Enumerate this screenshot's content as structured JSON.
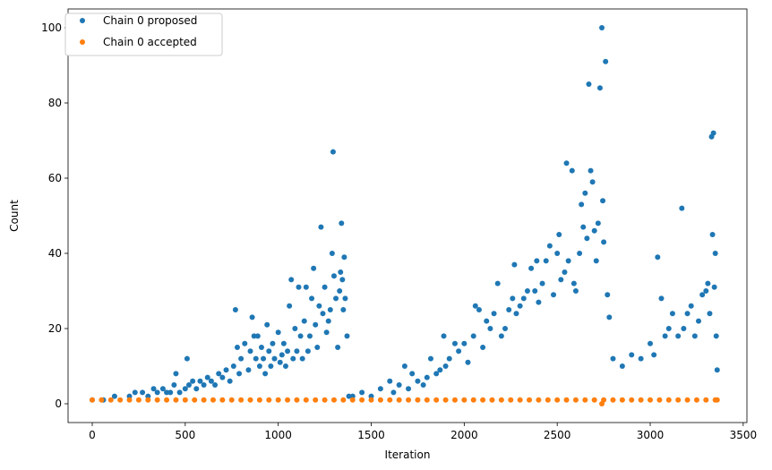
{
  "chart_data": {
    "type": "scatter",
    "title": "",
    "xlabel": "Iteration",
    "ylabel": "Count",
    "xlim": [
      -130,
      3520
    ],
    "ylim": [
      -5,
      105
    ],
    "xticks": [
      0,
      500,
      1000,
      1500,
      2000,
      2500,
      3000,
      3500
    ],
    "yticks": [
      0,
      20,
      40,
      60,
      80,
      100
    ],
    "grid": false,
    "legend": "top-left",
    "series": [
      {
        "name": "Chain 0 proposed",
        "color": "#1f77b4",
        "points": [
          [
            0,
            1
          ],
          [
            60,
            1
          ],
          [
            120,
            2
          ],
          [
            200,
            2
          ],
          [
            230,
            3
          ],
          [
            270,
            3
          ],
          [
            300,
            2
          ],
          [
            330,
            4
          ],
          [
            350,
            3
          ],
          [
            380,
            4
          ],
          [
            400,
            3
          ],
          [
            420,
            3
          ],
          [
            440,
            5
          ],
          [
            450,
            8
          ],
          [
            470,
            3
          ],
          [
            500,
            4
          ],
          [
            510,
            12
          ],
          [
            520,
            5
          ],
          [
            540,
            6
          ],
          [
            560,
            4
          ],
          [
            580,
            6
          ],
          [
            600,
            5
          ],
          [
            620,
            7
          ],
          [
            640,
            6
          ],
          [
            660,
            5
          ],
          [
            680,
            8
          ],
          [
            700,
            7
          ],
          [
            720,
            9
          ],
          [
            740,
            6
          ],
          [
            760,
            10
          ],
          [
            770,
            25
          ],
          [
            780,
            15
          ],
          [
            790,
            8
          ],
          [
            800,
            12
          ],
          [
            820,
            16
          ],
          [
            840,
            9
          ],
          [
            850,
            14
          ],
          [
            860,
            23
          ],
          [
            870,
            18
          ],
          [
            880,
            12
          ],
          [
            890,
            18
          ],
          [
            900,
            10
          ],
          [
            910,
            15
          ],
          [
            920,
            12
          ],
          [
            930,
            8
          ],
          [
            940,
            21
          ],
          [
            950,
            14
          ],
          [
            960,
            10
          ],
          [
            970,
            16
          ],
          [
            980,
            12
          ],
          [
            1000,
            19
          ],
          [
            1010,
            11
          ],
          [
            1020,
            13
          ],
          [
            1030,
            16
          ],
          [
            1040,
            10
          ],
          [
            1050,
            14
          ],
          [
            1060,
            26
          ],
          [
            1070,
            33
          ],
          [
            1080,
            12
          ],
          [
            1090,
            20
          ],
          [
            1100,
            14
          ],
          [
            1110,
            31
          ],
          [
            1120,
            18
          ],
          [
            1130,
            12
          ],
          [
            1140,
            22
          ],
          [
            1150,
            31
          ],
          [
            1160,
            14
          ],
          [
            1170,
            18
          ],
          [
            1180,
            28
          ],
          [
            1190,
            36
          ],
          [
            1200,
            21
          ],
          [
            1210,
            15
          ],
          [
            1220,
            26
          ],
          [
            1230,
            47
          ],
          [
            1240,
            24
          ],
          [
            1250,
            31
          ],
          [
            1260,
            19
          ],
          [
            1270,
            22
          ],
          [
            1280,
            25
          ],
          [
            1290,
            40
          ],
          [
            1295,
            67
          ],
          [
            1300,
            34
          ],
          [
            1310,
            28
          ],
          [
            1320,
            15
          ],
          [
            1330,
            30
          ],
          [
            1335,
            35
          ],
          [
            1340,
            48
          ],
          [
            1345,
            33
          ],
          [
            1350,
            25
          ],
          [
            1355,
            39
          ],
          [
            1360,
            28
          ],
          [
            1370,
            18
          ],
          [
            1380,
            2
          ],
          [
            1400,
            2
          ],
          [
            1450,
            3
          ],
          [
            1500,
            2
          ],
          [
            1550,
            4
          ],
          [
            1600,
            6
          ],
          [
            1620,
            3
          ],
          [
            1650,
            5
          ],
          [
            1680,
            10
          ],
          [
            1700,
            4
          ],
          [
            1720,
            8
          ],
          [
            1750,
            6
          ],
          [
            1780,
            5
          ],
          [
            1800,
            7
          ],
          [
            1820,
            12
          ],
          [
            1850,
            8
          ],
          [
            1870,
            9
          ],
          [
            1890,
            18
          ],
          [
            1900,
            10
          ],
          [
            1920,
            12
          ],
          [
            1950,
            16
          ],
          [
            1970,
            14
          ],
          [
            2000,
            16
          ],
          [
            2020,
            11
          ],
          [
            2050,
            18
          ],
          [
            2060,
            26
          ],
          [
            2080,
            25
          ],
          [
            2100,
            15
          ],
          [
            2120,
            22
          ],
          [
            2140,
            20
          ],
          [
            2160,
            24
          ],
          [
            2180,
            32
          ],
          [
            2200,
            18
          ],
          [
            2220,
            20
          ],
          [
            2240,
            25
          ],
          [
            2260,
            28
          ],
          [
            2270,
            37
          ],
          [
            2280,
            24
          ],
          [
            2300,
            26
          ],
          [
            2320,
            28
          ],
          [
            2340,
            30
          ],
          [
            2360,
            36
          ],
          [
            2380,
            30
          ],
          [
            2390,
            38
          ],
          [
            2400,
            27
          ],
          [
            2420,
            32
          ],
          [
            2440,
            38
          ],
          [
            2460,
            42
          ],
          [
            2480,
            29
          ],
          [
            2500,
            40
          ],
          [
            2510,
            45
          ],
          [
            2520,
            33
          ],
          [
            2540,
            35
          ],
          [
            2550,
            64
          ],
          [
            2560,
            38
          ],
          [
            2580,
            62
          ],
          [
            2590,
            32
          ],
          [
            2600,
            30
          ],
          [
            2620,
            40
          ],
          [
            2630,
            53
          ],
          [
            2640,
            47
          ],
          [
            2650,
            56
          ],
          [
            2660,
            44
          ],
          [
            2670,
            85
          ],
          [
            2680,
            62
          ],
          [
            2690,
            59
          ],
          [
            2700,
            46
          ],
          [
            2710,
            38
          ],
          [
            2720,
            48
          ],
          [
            2730,
            84
          ],
          [
            2740,
            100
          ],
          [
            2745,
            54
          ],
          [
            2750,
            43
          ],
          [
            2760,
            91
          ],
          [
            2770,
            29
          ],
          [
            2780,
            23
          ],
          [
            2800,
            12
          ],
          [
            2850,
            10
          ],
          [
            2900,
            13
          ],
          [
            2950,
            12
          ],
          [
            3000,
            16
          ],
          [
            3020,
            13
          ],
          [
            3040,
            39
          ],
          [
            3060,
            28
          ],
          [
            3080,
            18
          ],
          [
            3100,
            20
          ],
          [
            3120,
            24
          ],
          [
            3150,
            18
          ],
          [
            3170,
            52
          ],
          [
            3180,
            20
          ],
          [
            3200,
            24
          ],
          [
            3220,
            26
          ],
          [
            3240,
            18
          ],
          [
            3260,
            22
          ],
          [
            3280,
            29
          ],
          [
            3300,
            30
          ],
          [
            3310,
            32
          ],
          [
            3320,
            24
          ],
          [
            3330,
            71
          ],
          [
            3335,
            45
          ],
          [
            3340,
            72
          ],
          [
            3345,
            31
          ],
          [
            3350,
            40
          ],
          [
            3355,
            18
          ],
          [
            3360,
            9
          ]
        ]
      },
      {
        "name": "Chain 0 accepted",
        "color": "#ff7f0e",
        "points": [
          [
            0,
            1
          ],
          [
            50,
            1
          ],
          [
            100,
            1
          ],
          [
            150,
            1
          ],
          [
            200,
            1
          ],
          [
            250,
            1
          ],
          [
            300,
            1
          ],
          [
            350,
            1
          ],
          [
            400,
            1
          ],
          [
            450,
            1
          ],
          [
            500,
            1
          ],
          [
            550,
            1
          ],
          [
            600,
            1
          ],
          [
            650,
            1
          ],
          [
            700,
            1
          ],
          [
            750,
            1
          ],
          [
            800,
            1
          ],
          [
            850,
            1
          ],
          [
            900,
            1
          ],
          [
            950,
            1
          ],
          [
            1000,
            1
          ],
          [
            1050,
            1
          ],
          [
            1100,
            1
          ],
          [
            1150,
            1
          ],
          [
            1200,
            1
          ],
          [
            1250,
            1
          ],
          [
            1300,
            1
          ],
          [
            1350,
            1
          ],
          [
            1400,
            1
          ],
          [
            1450,
            1
          ],
          [
            1500,
            1
          ],
          [
            1550,
            1
          ],
          [
            1600,
            1
          ],
          [
            1650,
            1
          ],
          [
            1700,
            1
          ],
          [
            1750,
            1
          ],
          [
            1800,
            1
          ],
          [
            1850,
            1
          ],
          [
            1900,
            1
          ],
          [
            1950,
            1
          ],
          [
            2000,
            1
          ],
          [
            2050,
            1
          ],
          [
            2100,
            1
          ],
          [
            2150,
            1
          ],
          [
            2200,
            1
          ],
          [
            2250,
            1
          ],
          [
            2300,
            1
          ],
          [
            2350,
            1
          ],
          [
            2400,
            1
          ],
          [
            2450,
            1
          ],
          [
            2500,
            1
          ],
          [
            2550,
            1
          ],
          [
            2600,
            1
          ],
          [
            2650,
            1
          ],
          [
            2700,
            1
          ],
          [
            2740,
            0
          ],
          [
            2750,
            1
          ],
          [
            2800,
            1
          ],
          [
            2850,
            1
          ],
          [
            2900,
            1
          ],
          [
            2950,
            1
          ],
          [
            3000,
            1
          ],
          [
            3050,
            1
          ],
          [
            3100,
            1
          ],
          [
            3150,
            1
          ],
          [
            3200,
            1
          ],
          [
            3250,
            1
          ],
          [
            3300,
            1
          ],
          [
            3350,
            1
          ],
          [
            3360,
            1
          ]
        ]
      }
    ]
  }
}
